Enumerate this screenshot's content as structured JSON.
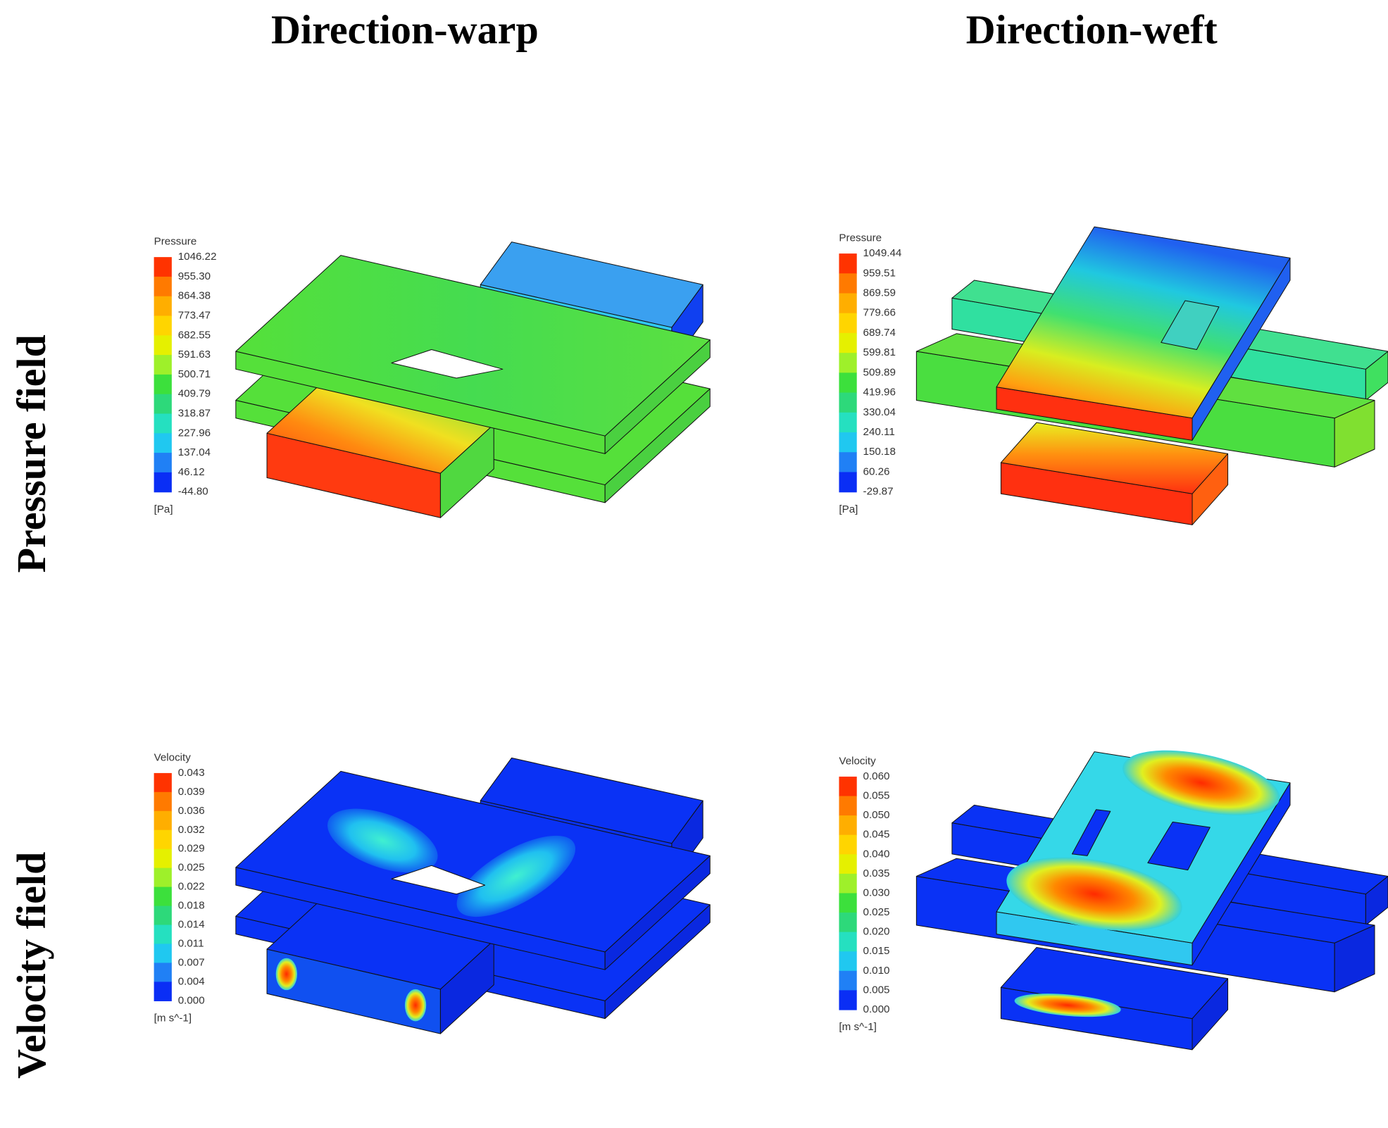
{
  "columns": [
    "Direction-warp",
    "Direction-weft"
  ],
  "rows": [
    "Pressure field",
    "Velocity field"
  ],
  "panels": [
    {
      "legend_title": "Pressure",
      "labels": [
        "1046.22",
        "955.30",
        "864.38",
        "773.47",
        "682.55",
        "591.63",
        "500.71",
        "409.79",
        "318.87",
        "227.96",
        "137.04",
        "46.12",
        "-44.80"
      ],
      "unit": "[Pa]"
    },
    {
      "legend_title": "Pressure",
      "labels": [
        "1049.44",
        "959.51",
        "869.59",
        "779.66",
        "689.74",
        "599.81",
        "509.89",
        "419.96",
        "330.04",
        "240.11",
        "150.18",
        "60.26",
        "-29.87"
      ],
      "unit": "[Pa]"
    },
    {
      "legend_title": "Velocity",
      "labels": [
        "0.043",
        "0.039",
        "0.036",
        "0.032",
        "0.029",
        "0.025",
        "0.022",
        "0.018",
        "0.014",
        "0.011",
        "0.007",
        "0.004",
        "0.000"
      ],
      "unit": "[m s^-1]"
    },
    {
      "legend_title": "Velocity",
      "labels": [
        "0.060",
        "0.055",
        "0.050",
        "0.045",
        "0.040",
        "0.035",
        "0.030",
        "0.025",
        "0.020",
        "0.015",
        "0.010",
        "0.005",
        "0.000"
      ],
      "unit": "[m s^-1]"
    }
  ]
}
